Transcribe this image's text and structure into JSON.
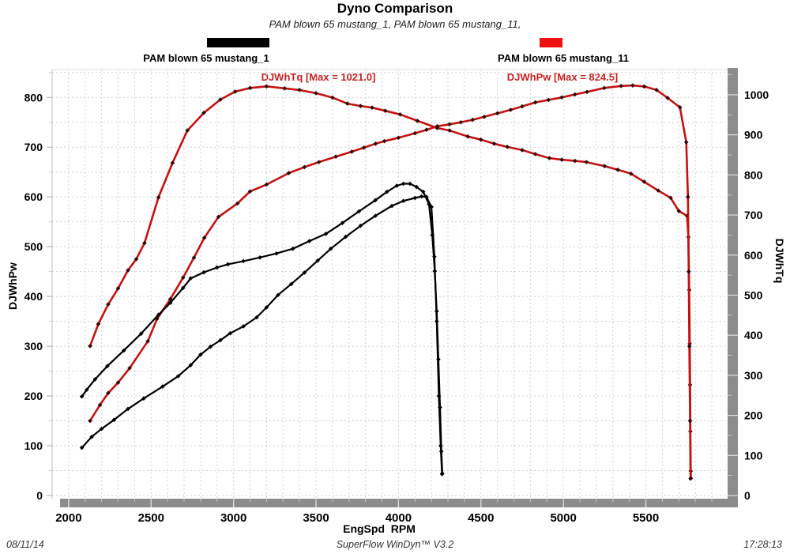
{
  "header": {
    "title": "Dyno Comparison",
    "subtitle": "PAM blown 65 mustang_1, PAM blown 65 mustang_11,"
  },
  "legend": [
    {
      "label": "PAM blown 65 mustang_1",
      "color": "#000000"
    },
    {
      "label": "PAM blown 65 mustang_11",
      "color": "#ee1111"
    }
  ],
  "footer": {
    "date": "08/11/14",
    "app": "SuperFlow WinDyn™ V3.2",
    "time": "17:28:13"
  },
  "chart_data": {
    "type": "line",
    "title": "Dyno Comparison",
    "subtitle": "PAM blown 65 mustang_1, PAM blown 65 mustang_11,",
    "xlabel": "EngSpd  RPM",
    "ylabel_left": "DJWhPw",
    "ylabel_right": "DJWhTq",
    "xlim": [
      1900,
      6010
    ],
    "x_tick_labels": [
      2000,
      2500,
      3000,
      3500,
      4000,
      4500,
      5000,
      5500
    ],
    "x_minor_step": 100,
    "left_lim": [
      0,
      856
    ],
    "left_tick_labels": [
      0,
      100,
      200,
      300,
      400,
      500,
      600,
      700,
      800
    ],
    "right_lim": [
      0,
      1063
    ],
    "right_tick_labels": [
      0,
      100,
      200,
      300,
      400,
      500,
      600,
      700,
      800,
      900,
      1000
    ],
    "grid": {
      "x_step": 100,
      "left_step": 50,
      "style": "dashed"
    },
    "legend_position": "top",
    "annotations": [
      {
        "text": "DJWhTq [Max = 1021.0]",
        "max": 1021.0,
        "channel": "DJWhTq"
      },
      {
        "text": "DJWhPw [Max = 824.5]",
        "max": 824.5,
        "channel": "DJWhPw"
      }
    ],
    "series": [
      {
        "name": "mustang_11-DJWhTq",
        "run": "PAM blown 65 mustang_11",
        "channel": "DJWhTq",
        "axis": "right",
        "color": "#c41212",
        "marker_color": "#2e0505",
        "width": 2.6,
        "points": [
          [
            2130,
            373
          ],
          [
            2180,
            428
          ],
          [
            2240,
            477
          ],
          [
            2300,
            517
          ],
          [
            2360,
            562
          ],
          [
            2410,
            590
          ],
          [
            2460,
            630
          ],
          [
            2545,
            744
          ],
          [
            2630,
            830
          ],
          [
            2720,
            911
          ],
          [
            2820,
            955
          ],
          [
            2920,
            988
          ],
          [
            3010,
            1008
          ],
          [
            3100,
            1017
          ],
          [
            3200,
            1021
          ],
          [
            3310,
            1016
          ],
          [
            3400,
            1012
          ],
          [
            3500,
            1004
          ],
          [
            3600,
            993
          ],
          [
            3690,
            978
          ],
          [
            3770,
            972
          ],
          [
            3840,
            968
          ],
          [
            3920,
            960
          ],
          [
            4010,
            951
          ],
          [
            4115,
            935
          ],
          [
            4235,
            917
          ],
          [
            4310,
            911
          ],
          [
            4420,
            896
          ],
          [
            4500,
            888
          ],
          [
            4580,
            878
          ],
          [
            4660,
            870
          ],
          [
            4750,
            862
          ],
          [
            4830,
            852
          ],
          [
            4915,
            842
          ],
          [
            4990,
            838
          ],
          [
            5070,
            835
          ],
          [
            5140,
            832
          ],
          [
            5250,
            822
          ],
          [
            5330,
            813
          ],
          [
            5410,
            803
          ],
          [
            5490,
            783
          ],
          [
            5575,
            761
          ],
          [
            5650,
            743
          ],
          [
            5700,
            710
          ],
          [
            5750,
            698
          ],
          [
            5758,
            645
          ],
          [
            5763,
            513
          ],
          [
            5766,
            379
          ],
          [
            5768,
            276
          ],
          [
            5770,
            160
          ],
          [
            5772,
            61
          ],
          [
            5773,
            43
          ]
        ]
      },
      {
        "name": "mustang_11-DJWhPw",
        "run": "PAM blown 65 mustang_11",
        "channel": "DJWhPw",
        "axis": "left",
        "color": "#c41212",
        "marker_color": "#2e0505",
        "width": 2.6,
        "points": [
          [
            2130,
            150
          ],
          [
            2190,
            182
          ],
          [
            2240,
            206
          ],
          [
            2300,
            227
          ],
          [
            2370,
            256
          ],
          [
            2480,
            310
          ],
          [
            2536,
            355
          ],
          [
            2617,
            395
          ],
          [
            2694,
            438
          ],
          [
            2760,
            478
          ],
          [
            2823,
            518
          ],
          [
            2909,
            560
          ],
          [
            3024,
            587
          ],
          [
            3100,
            611
          ],
          [
            3200,
            625
          ],
          [
            3335,
            648
          ],
          [
            3430,
            660
          ],
          [
            3517,
            670
          ],
          [
            3620,
            681
          ],
          [
            3717,
            691
          ],
          [
            3790,
            699
          ],
          [
            3861,
            707
          ],
          [
            3914,
            712
          ],
          [
            4000,
            719
          ],
          [
            4100,
            728
          ],
          [
            4170,
            735
          ],
          [
            4235,
            742
          ],
          [
            4310,
            746
          ],
          [
            4378,
            750
          ],
          [
            4450,
            755
          ],
          [
            4520,
            761
          ],
          [
            4600,
            768
          ],
          [
            4680,
            775
          ],
          [
            4750,
            782
          ],
          [
            4830,
            790
          ],
          [
            4910,
            795
          ],
          [
            4990,
            800
          ],
          [
            5070,
            806
          ],
          [
            5143,
            811
          ],
          [
            5248,
            819
          ],
          [
            5350,
            823
          ],
          [
            5420,
            824
          ],
          [
            5490,
            822
          ],
          [
            5565,
            815
          ],
          [
            5632,
            799
          ],
          [
            5707,
            780
          ],
          [
            5745,
            710
          ],
          [
            5755,
            600
          ],
          [
            5760,
            450
          ],
          [
            5764,
            300
          ],
          [
            5768,
            150
          ],
          [
            5771,
            34
          ]
        ]
      },
      {
        "name": "mustang_1-DJWhTq",
        "run": "PAM blown 65 mustang_1",
        "channel": "DJWhTq",
        "axis": "right",
        "color": "#000000",
        "marker_color": "#000000",
        "width": 2.2,
        "points": [
          [
            2080,
            247
          ],
          [
            2110,
            264
          ],
          [
            2160,
            290
          ],
          [
            2235,
            323
          ],
          [
            2335,
            362
          ],
          [
            2440,
            404
          ],
          [
            2545,
            451
          ],
          [
            2617,
            481
          ],
          [
            2694,
            518
          ],
          [
            2740,
            542
          ],
          [
            2820,
            557
          ],
          [
            2900,
            569
          ],
          [
            2966,
            577
          ],
          [
            3060,
            585
          ],
          [
            3160,
            594
          ],
          [
            3260,
            604
          ],
          [
            3360,
            616
          ],
          [
            3460,
            635
          ],
          [
            3560,
            653
          ],
          [
            3660,
            680
          ],
          [
            3760,
            709
          ],
          [
            3860,
            737
          ],
          [
            3930,
            758
          ],
          [
            3990,
            773
          ],
          [
            4030,
            778
          ],
          [
            4070,
            778
          ],
          [
            4110,
            770
          ],
          [
            4150,
            758
          ],
          [
            4185,
            727
          ],
          [
            4205,
            650
          ],
          [
            4220,
            560
          ],
          [
            4232,
            460
          ],
          [
            4242,
            340
          ],
          [
            4252,
            220
          ],
          [
            4260,
            110
          ],
          [
            4266,
            55
          ]
        ]
      },
      {
        "name": "mustang_1-DJWhPw",
        "run": "PAM blown 65 mustang_1",
        "channel": "DJWhPw",
        "axis": "left",
        "color": "#000000",
        "marker_color": "#000000",
        "width": 2.2,
        "points": [
          [
            2080,
            96
          ],
          [
            2140,
            118
          ],
          [
            2200,
            134
          ],
          [
            2275,
            152
          ],
          [
            2360,
            174
          ],
          [
            2455,
            195
          ],
          [
            2570,
            219
          ],
          [
            2665,
            240
          ],
          [
            2740,
            262
          ],
          [
            2800,
            283
          ],
          [
            2860,
            299
          ],
          [
            2920,
            312
          ],
          [
            2980,
            326
          ],
          [
            3060,
            340
          ],
          [
            3140,
            358
          ],
          [
            3200,
            378
          ],
          [
            3270,
            403
          ],
          [
            3350,
            425
          ],
          [
            3430,
            448
          ],
          [
            3510,
            472
          ],
          [
            3590,
            496
          ],
          [
            3680,
            520
          ],
          [
            3770,
            542
          ],
          [
            3860,
            562
          ],
          [
            3960,
            582
          ],
          [
            4030,
            592
          ],
          [
            4100,
            598
          ],
          [
            4140,
            601
          ],
          [
            4170,
            600
          ],
          [
            4200,
            580
          ],
          [
            4218,
            480
          ],
          [
            4232,
            350
          ],
          [
            4245,
            200
          ],
          [
            4256,
            100
          ],
          [
            4264,
            43
          ]
        ]
      }
    ]
  }
}
